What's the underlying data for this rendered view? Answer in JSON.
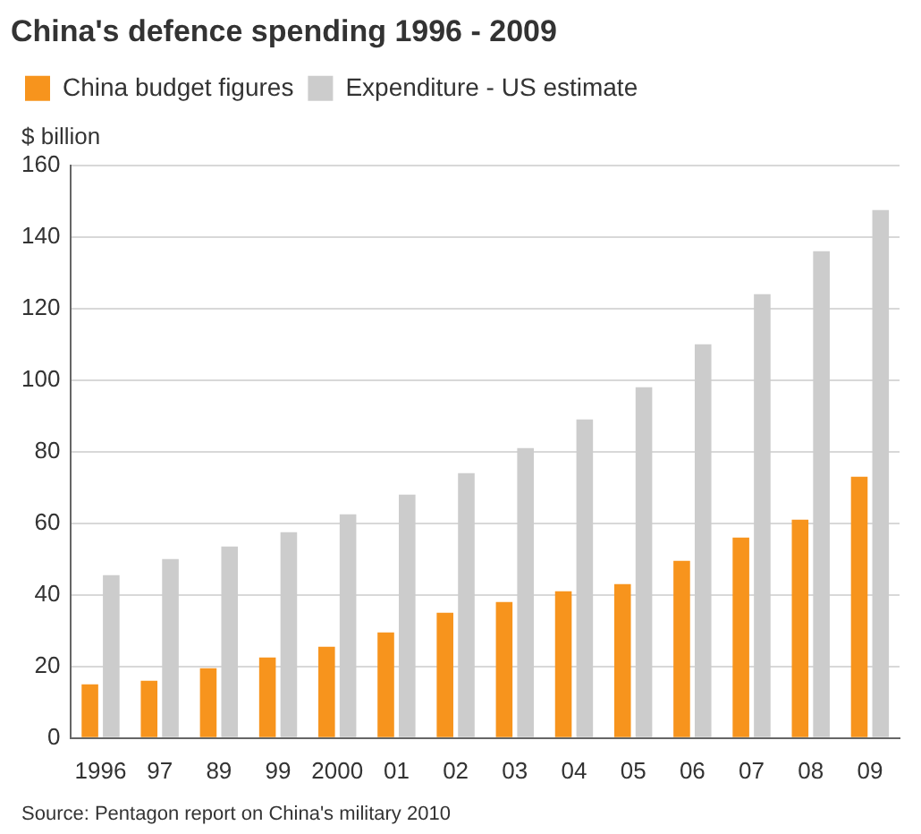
{
  "chart_data": {
    "type": "bar",
    "title": "China's defence spending 1996 - 2009",
    "ylabel": "$ billion",
    "categories": [
      "1996",
      "97",
      "89",
      "99",
      "2000",
      "01",
      "02",
      "03",
      "04",
      "05",
      "06",
      "07",
      "08",
      "09"
    ],
    "series": [
      {
        "name": "China budget figures",
        "color": "#f7941d",
        "values": [
          15,
          16,
          19.5,
          22.5,
          25.5,
          29.5,
          35,
          38,
          41,
          43,
          49.5,
          56,
          61,
          73
        ]
      },
      {
        "name": "Expenditure - US estimate",
        "color": "#cccccc",
        "values": [
          45.5,
          50,
          53.5,
          57.5,
          62.5,
          68,
          74,
          81,
          89,
          98,
          110,
          124,
          136,
          147.5
        ]
      }
    ],
    "ylim": [
      0,
      160
    ],
    "yticks": [
      0,
      20,
      40,
      60,
      80,
      100,
      120,
      140,
      160
    ],
    "grid": "y",
    "legend": "top left",
    "annotations": [
      "Source: Pentagon report on China's military 2010"
    ]
  }
}
